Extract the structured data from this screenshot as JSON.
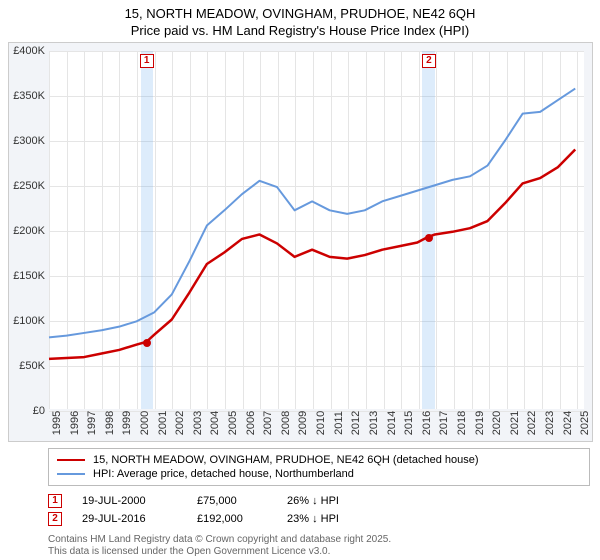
{
  "title": {
    "line1": "15, NORTH MEADOW, OVINGHAM, PRUDHOE, NE42 6QH",
    "line2": "Price paid vs. HM Land Registry's House Price Index (HPI)"
  },
  "chart": {
    "type": "line",
    "background_color": "#ffffff",
    "panel_color": "#f2f4f8",
    "grid_color": "#e5e5e5",
    "border_color": "#cccccc",
    "x": {
      "min": 1995,
      "max": 2025.5,
      "ticks": [
        1995,
        1996,
        1997,
        1998,
        1999,
        2000,
        2001,
        2002,
        2003,
        2004,
        2005,
        2006,
        2007,
        2008,
        2009,
        2010,
        2011,
        2012,
        2013,
        2014,
        2015,
        2016,
        2017,
        2018,
        2019,
        2020,
        2021,
        2022,
        2023,
        2024,
        2025
      ],
      "label_fontsize": 11
    },
    "y": {
      "min": 0,
      "max": 400000,
      "ticks": [
        0,
        50000,
        100000,
        150000,
        200000,
        250000,
        300000,
        350000,
        400000
      ],
      "labels": [
        "£0",
        "£50K",
        "£100K",
        "£150K",
        "£200K",
        "£250K",
        "£300K",
        "£350K",
        "£400K"
      ],
      "label_fontsize": 11
    },
    "shaded_regions": [
      {
        "x_from": 2000.2,
        "x_to": 2000.9,
        "color": "rgba(99,168,236,0.22)"
      },
      {
        "x_from": 2016.2,
        "x_to": 2016.9,
        "color": "rgba(99,168,236,0.22)"
      }
    ],
    "series": [
      {
        "name": "property",
        "label": "15, NORTH MEADOW, OVINGHAM, PRUDHOE, NE42 6QH (detached house)",
        "color": "#cc0000",
        "line_width": 2.5,
        "points": [
          [
            1995,
            56000
          ],
          [
            1996,
            57000
          ],
          [
            1997,
            58000
          ],
          [
            1998,
            62000
          ],
          [
            1999,
            66000
          ],
          [
            2000,
            72000
          ],
          [
            2000.55,
            75000
          ],
          [
            2001,
            83000
          ],
          [
            2002,
            100000
          ],
          [
            2003,
            130000
          ],
          [
            2004,
            162000
          ],
          [
            2005,
            175000
          ],
          [
            2006,
            190000
          ],
          [
            2007,
            195000
          ],
          [
            2008,
            185000
          ],
          [
            2009,
            170000
          ],
          [
            2010,
            178000
          ],
          [
            2011,
            170000
          ],
          [
            2012,
            168000
          ],
          [
            2013,
            172000
          ],
          [
            2014,
            178000
          ],
          [
            2015,
            182000
          ],
          [
            2016,
            186000
          ],
          [
            2016.58,
            192000
          ],
          [
            2017,
            195000
          ],
          [
            2018,
            198000
          ],
          [
            2019,
            202000
          ],
          [
            2020,
            210000
          ],
          [
            2021,
            230000
          ],
          [
            2022,
            252000
          ],
          [
            2023,
            258000
          ],
          [
            2024,
            270000
          ],
          [
            2025,
            290000
          ]
        ]
      },
      {
        "name": "hpi",
        "label": "HPI: Average price, detached house, Northumberland",
        "color": "#6699dd",
        "line_width": 2,
        "points": [
          [
            1995,
            80000
          ],
          [
            1996,
            82000
          ],
          [
            1997,
            85000
          ],
          [
            1998,
            88000
          ],
          [
            1999,
            92000
          ],
          [
            2000,
            98000
          ],
          [
            2001,
            108000
          ],
          [
            2002,
            128000
          ],
          [
            2003,
            165000
          ],
          [
            2004,
            205000
          ],
          [
            2005,
            222000
          ],
          [
            2006,
            240000
          ],
          [
            2007,
            255000
          ],
          [
            2008,
            248000
          ],
          [
            2009,
            222000
          ],
          [
            2010,
            232000
          ],
          [
            2011,
            222000
          ],
          [
            2012,
            218000
          ],
          [
            2013,
            222000
          ],
          [
            2014,
            232000
          ],
          [
            2015,
            238000
          ],
          [
            2016,
            244000
          ],
          [
            2017,
            250000
          ],
          [
            2018,
            256000
          ],
          [
            2019,
            260000
          ],
          [
            2020,
            272000
          ],
          [
            2021,
            300000
          ],
          [
            2022,
            330000
          ],
          [
            2023,
            332000
          ],
          [
            2024,
            345000
          ],
          [
            2025,
            358000
          ]
        ]
      }
    ],
    "markers": [
      {
        "id": "1",
        "x": 2000.55,
        "y": 75000,
        "color": "#cc0000",
        "label_y_offset_top": true
      },
      {
        "id": "2",
        "x": 2016.58,
        "y": 192000,
        "color": "#cc0000",
        "label_y_offset_top": true
      }
    ]
  },
  "legend": {
    "items": [
      {
        "color": "#cc0000",
        "width": 2.5,
        "label": "15, NORTH MEADOW, OVINGHAM, PRUDHOE, NE42 6QH (detached house)"
      },
      {
        "color": "#6699dd",
        "width": 2,
        "label": "HPI: Average price, detached house, Northumberland"
      }
    ]
  },
  "sales": [
    {
      "id": "1",
      "color": "#cc0000",
      "date": "19-JUL-2000",
      "price": "£75,000",
      "delta": "26% ↓ HPI"
    },
    {
      "id": "2",
      "color": "#cc0000",
      "date": "29-JUL-2016",
      "price": "£192,000",
      "delta": "23% ↓ HPI"
    }
  ],
  "footer": {
    "line1": "Contains HM Land Registry data © Crown copyright and database right 2025.",
    "line2": "This data is licensed under the Open Government Licence v3.0."
  }
}
